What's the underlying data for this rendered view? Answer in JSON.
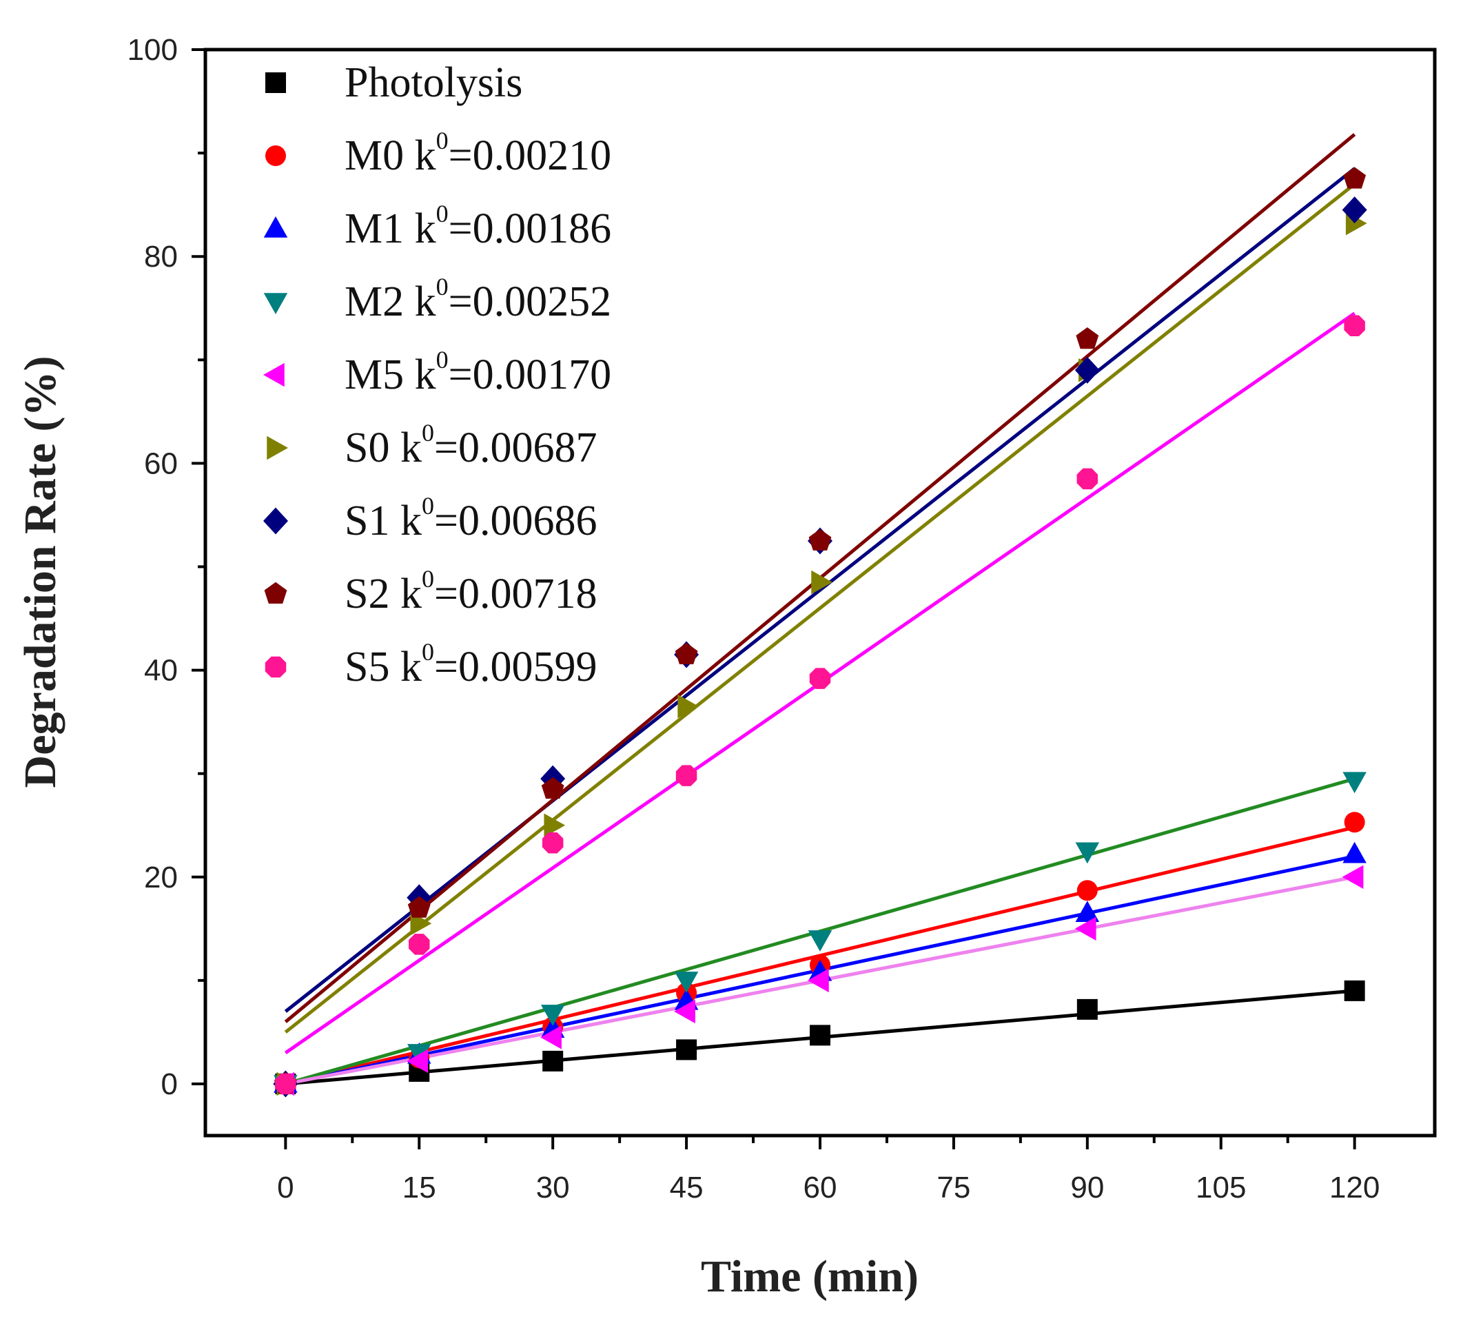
{
  "chart_data": {
    "type": "scatter",
    "title": "",
    "xlabel": "Time (min)",
    "ylabel": "Degradation Rate (%)",
    "xlim": [
      -9,
      129
    ],
    "ylim": [
      -5,
      100
    ],
    "xticks": [
      0,
      15,
      30,
      45,
      60,
      75,
      90,
      105,
      120
    ],
    "yticks": [
      0,
      20,
      40,
      60,
      80,
      100
    ],
    "grid": false,
    "legend_position": "top-left",
    "x": [
      0,
      15,
      30,
      45,
      60,
      90,
      120
    ],
    "series": [
      {
        "name": "Photolysis",
        "k_label": "",
        "k_value": "",
        "marker": "square",
        "color": "#000000",
        "line_color": "#000000",
        "values": [
          0,
          1.2,
          2.2,
          3.3,
          4.7,
          7.2,
          9.0
        ],
        "fit": [
          0,
          9.0
        ]
      },
      {
        "name": "M0",
        "k_label": "k",
        "k_sup": "0",
        "k_value": "=0.00210",
        "marker": "circle",
        "color": "#ff0000",
        "line_color": "#ff0000",
        "values": [
          0,
          2.5,
          5.5,
          8.8,
          11.5,
          18.7,
          25.3
        ],
        "fit": [
          0,
          24.8
        ]
      },
      {
        "name": "M1",
        "k_label": "k",
        "k_sup": "0",
        "k_value": "=0.00186",
        "marker": "triangle-up",
        "color": "#0000ff",
        "line_color": "#0000ff",
        "values": [
          0,
          2.8,
          5.3,
          8.0,
          10.8,
          16.5,
          22.2
        ],
        "fit": [
          0,
          22.0
        ]
      },
      {
        "name": "M2",
        "k_label": "k",
        "k_sup": "0",
        "k_value": "=0.00252",
        "marker": "triangle-down",
        "color": "#007f7f",
        "line_color": "#228b22",
        "values": [
          0,
          3.0,
          6.8,
          10.0,
          14.0,
          22.5,
          29.3
        ],
        "fit": [
          0,
          29.5
        ]
      },
      {
        "name": "M5",
        "k_label": "k",
        "k_sup": "0",
        "k_value": "=0.00170",
        "marker": "triangle-left",
        "color": "#ff00ff",
        "line_color": "#ee82ee",
        "values": [
          0,
          2.2,
          4.5,
          7.0,
          10.0,
          15.0,
          20.0
        ],
        "fit": [
          0,
          20.0
        ]
      },
      {
        "name": "S0",
        "k_label": "k",
        "k_sup": "0",
        "k_value": "=0.00687",
        "marker": "triangle-right",
        "color": "#808000",
        "line_color": "#808000",
        "values": [
          0,
          15.5,
          25.0,
          36.5,
          48.5,
          69.0,
          83.2
        ],
        "fit": [
          5.0,
          87.0
        ]
      },
      {
        "name": "S1",
        "k_label": "k",
        "k_sup": "0",
        "k_value": "=0.00686",
        "marker": "diamond",
        "color": "#00007f",
        "line_color": "#00007f",
        "values": [
          0,
          18.0,
          29.5,
          41.5,
          52.5,
          69.0,
          84.5
        ],
        "fit": [
          7.0,
          88.5
        ]
      },
      {
        "name": "S2",
        "k_label": "k",
        "k_sup": "0",
        "k_value": "=0.00718",
        "marker": "pentagon",
        "color": "#7f0000",
        "line_color": "#7f0000",
        "values": [
          0,
          17.0,
          28.5,
          41.5,
          52.5,
          72.0,
          87.5
        ],
        "fit": [
          6.0,
          91.8
        ]
      },
      {
        "name": "S5",
        "k_label": "k",
        "k_sup": "0",
        "k_value": "=0.00599",
        "marker": "octagon",
        "color": "#ff1493",
        "line_color": "#ff00ff",
        "values": [
          0,
          13.5,
          23.3,
          29.8,
          39.2,
          58.5,
          73.3
        ],
        "fit": [
          3.0,
          74.5
        ]
      }
    ]
  }
}
